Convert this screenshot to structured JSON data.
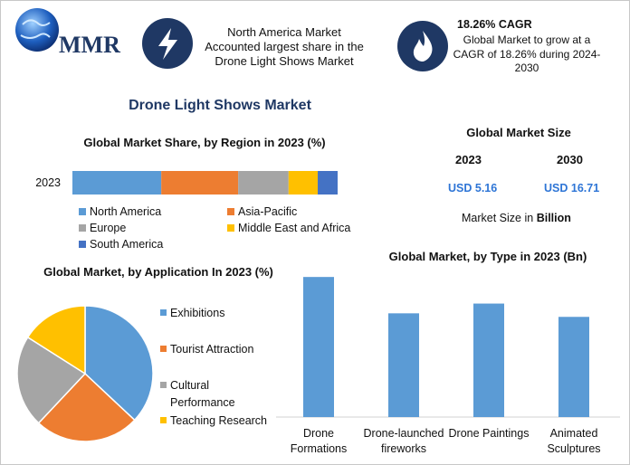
{
  "header": {
    "logo": "MMR",
    "highlight": "North America Market Accounted largest share in the Drone Light Shows Market",
    "cagr_title": "18.26% CAGR",
    "cagr_text": "Global Market to grow at a CAGR of 18.26% during 2024-2030"
  },
  "title": "Drone Light Shows Market",
  "market_size": {
    "title": "Global Market Size",
    "years": [
      "2023",
      "2030"
    ],
    "values": [
      "USD 5.16",
      "USD 16.71"
    ],
    "note": "Market Size in",
    "unit": "Billion"
  },
  "chart_data": [
    {
      "type": "bar",
      "orientation": "horizontal",
      "stacked": true,
      "title": "Global Market Share, by Region in 2023 (%)",
      "categories": [
        "2023"
      ],
      "xlim": [
        0,
        100
      ],
      "series": [
        {
          "name": "North America",
          "color": "#5b9bd5",
          "values": [
            33.5
          ]
        },
        {
          "name": "Asia-Pacific",
          "color": "#ed7d31",
          "values": [
            29
          ]
        },
        {
          "name": "Europe",
          "color": "#a5a5a5",
          "values": [
            19
          ]
        },
        {
          "name": "Middle East and Africa",
          "color": "#ffc000",
          "values": [
            11
          ]
        },
        {
          "name": "South America",
          "color": "#4472c4",
          "values": [
            7.5
          ]
        }
      ]
    },
    {
      "type": "pie",
      "title": "Global Market, by Application In 2023 (%)",
      "categories": [
        "Exhibitions",
        "Tourist Attraction",
        "Cultural Performance",
        "Teaching Research"
      ],
      "values": [
        37,
        25,
        22,
        16
      ],
      "colors": [
        "#5b9bd5",
        "#ed7d31",
        "#a5a5a5",
        "#ffc000"
      ]
    },
    {
      "type": "bar",
      "title": "Global Market, by Type in 2023 (Bn)",
      "categories": [
        "Drone Formations",
        "Drone-launched fireworks",
        "Drone Paintings",
        "Animated Sculptures"
      ],
      "values": [
        1.58,
        1.17,
        1.28,
        1.13
      ],
      "color": "#5b9bd5",
      "ylim": [
        0,
        2
      ]
    }
  ]
}
